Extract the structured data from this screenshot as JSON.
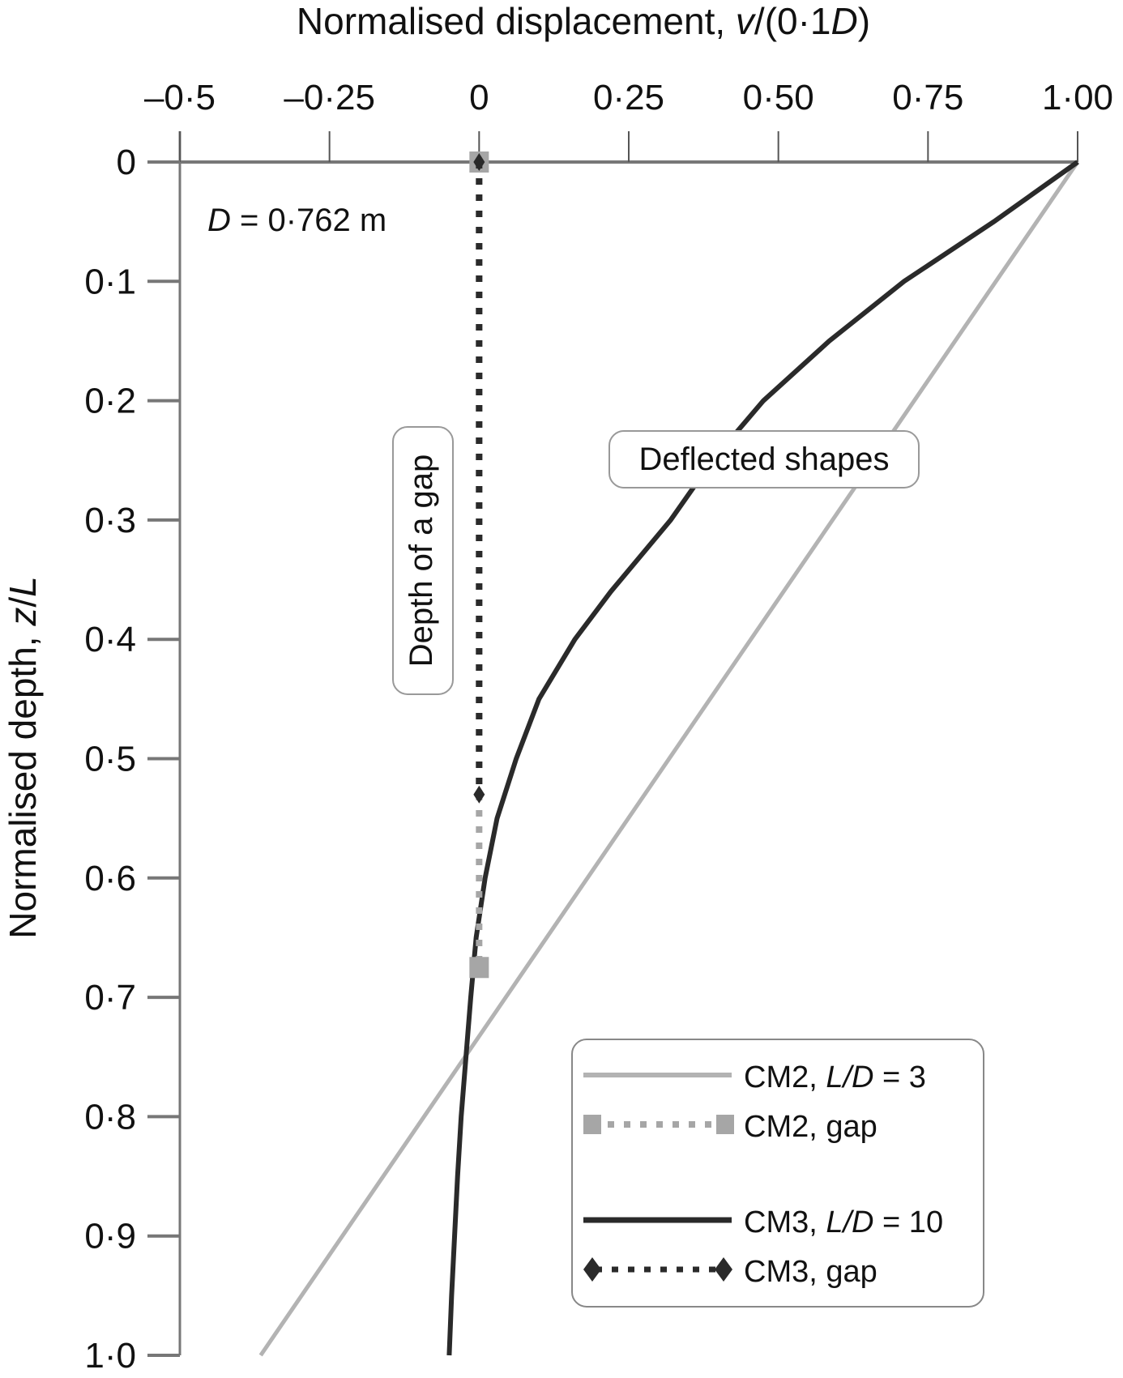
{
  "chart_data": {
    "type": "line",
    "title": "",
    "xlabel": "Normalised displacement, v/(0·1D)",
    "xlabel_parts": {
      "pre": "Normalised displacement, ",
      "v": "v",
      "mid": "/(0·1",
      "D": "D",
      "post": ")"
    },
    "ylabel": "Normalised depth, z/L",
    "ylabel_parts": {
      "pre": "Normalised depth, ",
      "z": "z",
      "slash": "/",
      "L": "L"
    },
    "xlim": [
      -0.5,
      1.0
    ],
    "ylim": [
      0,
      1.0
    ],
    "y_inverted": true,
    "x_axis_position": "top",
    "grid": false,
    "xticks": [
      -0.5,
      -0.25,
      0,
      0.25,
      0.5,
      0.75,
      1.0
    ],
    "xtick_labels": [
      "–0·5",
      "–0·25",
      "0",
      "0·25",
      "0·50",
      "0·75",
      "1·00"
    ],
    "yticks": [
      0,
      0.1,
      0.2,
      0.3,
      0.4,
      0.5,
      0.6,
      0.7,
      0.8,
      0.9,
      1.0
    ],
    "ytick_labels": [
      "0",
      "0·1",
      "0·2",
      "0·3",
      "0·4",
      "0·5",
      "0·6",
      "0·7",
      "0·8",
      "0·9",
      "1·0"
    ],
    "series": [
      {
        "name": "CM2, L/D = 3",
        "style": "solid",
        "color": "#b3b3b3",
        "points": [
          [
            1.0,
            0.0
          ],
          [
            -0.365,
            1.0
          ]
        ]
      },
      {
        "name": "CM2, gap",
        "style": "dotted",
        "color": "#a6a6a6",
        "marker": "square",
        "points": [
          [
            0.0,
            0.0
          ],
          [
            0.0,
            0.675
          ]
        ]
      },
      {
        "name": "CM3, L/D = 10",
        "style": "solid",
        "color": "#2a2a2a",
        "points": [
          [
            1.0,
            0.0
          ],
          [
            0.86,
            0.05
          ],
          [
            0.71,
            0.1
          ],
          [
            0.585,
            0.15
          ],
          [
            0.475,
            0.2
          ],
          [
            0.39,
            0.25
          ],
          [
            0.32,
            0.3
          ],
          [
            0.22,
            0.36
          ],
          [
            0.16,
            0.4
          ],
          [
            0.1,
            0.45
          ],
          [
            0.062,
            0.5
          ],
          [
            0.03,
            0.55
          ],
          [
            0.01,
            0.6
          ],
          [
            -0.005,
            0.65
          ],
          [
            -0.014,
            0.7
          ],
          [
            -0.022,
            0.75
          ],
          [
            -0.03,
            0.8
          ],
          [
            -0.036,
            0.85
          ],
          [
            -0.041,
            0.9
          ],
          [
            -0.046,
            0.95
          ],
          [
            -0.05,
            1.0
          ]
        ]
      },
      {
        "name": "CM3, gap",
        "style": "dotted",
        "color": "#2a2a2a",
        "marker": "diamond",
        "points": [
          [
            0.0,
            0.0
          ],
          [
            0.0,
            0.53
          ]
        ]
      }
    ],
    "legend": {
      "placement": "bottom-right",
      "entries": [
        {
          "pre": "CM2, ",
          "it": "L/D",
          "post": " = 3"
        },
        {
          "pre": "CM2, gap",
          "it": "",
          "post": ""
        },
        {
          "pre": "CM3, ",
          "it": "L/D",
          "post": " = 10"
        },
        {
          "pre": "CM3, gap",
          "it": "",
          "post": ""
        }
      ]
    },
    "annotations": {
      "diameter": {
        "D": "D",
        "rest": " = 0·762 m"
      },
      "gap_label": "Depth of a gap",
      "shapes_label": "Deflected shapes"
    }
  }
}
